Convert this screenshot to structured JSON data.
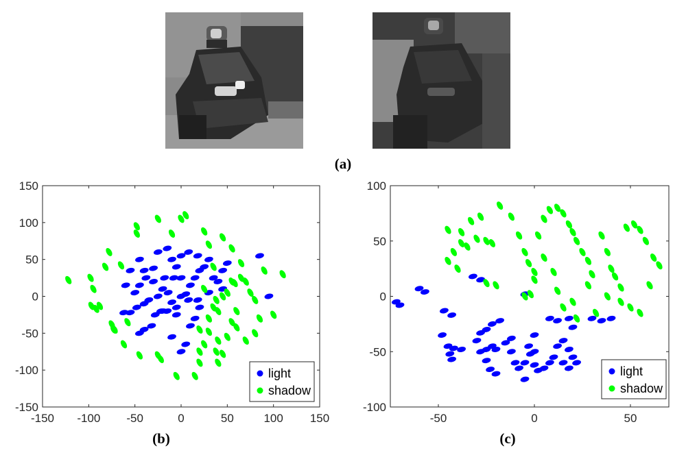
{
  "figure": {
    "captions": {
      "a": "(a)",
      "b": "(b)",
      "c": "(c)"
    },
    "photos": [
      {
        "name": "vehicle-under-light-photo"
      },
      {
        "name": "vehicle-in-shadow-photo"
      }
    ]
  },
  "chart_data": [
    {
      "type": "scatter",
      "title": "",
      "xlabel": "",
      "ylabel": "",
      "xlim": [
        -150,
        150
      ],
      "ylim": [
        -150,
        150
      ],
      "xticks": [
        -150,
        -100,
        -50,
        0,
        50,
        100,
        150
      ],
      "yticks": [
        -150,
        -100,
        -50,
        0,
        50,
        100,
        150
      ],
      "grid": false,
      "legend_position": "bottom-right",
      "series": [
        {
          "name": "light",
          "color": "#0000ff",
          "points": [
            [
              -62,
              -22
            ],
            [
              -55,
              -22
            ],
            [
              -48,
              -15
            ],
            [
              -40,
              -10
            ],
            [
              -35,
              -5
            ],
            [
              -25,
              0
            ],
            [
              -20,
              10
            ],
            [
              -14,
              5
            ],
            [
              -10,
              -8
            ],
            [
              -5,
              -15
            ],
            [
              0,
              0
            ],
            [
              5,
              3
            ],
            [
              8,
              -5
            ],
            [
              10,
              15
            ],
            [
              15,
              25
            ],
            [
              0,
              25
            ],
            [
              -8,
              25
            ],
            [
              -18,
              25
            ],
            [
              -30,
              20
            ],
            [
              -38,
              25
            ],
            [
              -45,
              15
            ],
            [
              -50,
              5
            ],
            [
              -60,
              15
            ],
            [
              -55,
              35
            ],
            [
              -45,
              50
            ],
            [
              -40,
              35
            ],
            [
              -30,
              38
            ],
            [
              -25,
              60
            ],
            [
              -15,
              65
            ],
            [
              -10,
              50
            ],
            [
              -5,
              40
            ],
            [
              0,
              55
            ],
            [
              8,
              60
            ],
            [
              18,
              55
            ],
            [
              20,
              35
            ],
            [
              25,
              40
            ],
            [
              30,
              50
            ],
            [
              35,
              25
            ],
            [
              40,
              20
            ],
            [
              45,
              10
            ],
            [
              30,
              5
            ],
            [
              18,
              -5
            ],
            [
              20,
              -15
            ],
            [
              15,
              -30
            ],
            [
              10,
              -40
            ],
            [
              -5,
              -25
            ],
            [
              -15,
              -20
            ],
            [
              -22,
              -20
            ],
            [
              -28,
              -25
            ],
            [
              -32,
              -40
            ],
            [
              -40,
              -45
            ],
            [
              -45,
              -50
            ],
            [
              -10,
              -55
            ],
            [
              0,
              -75
            ],
            [
              5,
              -65
            ],
            [
              45,
              35
            ],
            [
              50,
              45
            ],
            [
              85,
              55
            ],
            [
              95,
              0
            ],
            [
              -20,
              -20
            ]
          ]
        },
        {
          "name": "shadow",
          "color": "#00ff00",
          "points": [
            [
              -122,
              22
            ],
            [
              -98,
              25
            ],
            [
              -95,
              10
            ],
            [
              -97,
              -13
            ],
            [
              -92,
              -17
            ],
            [
              -88,
              -13
            ],
            [
              -82,
              40
            ],
            [
              -78,
              60
            ],
            [
              -75,
              -38
            ],
            [
              -73,
              -45
            ],
            [
              -62,
              -65
            ],
            [
              -65,
              42
            ],
            [
              -48,
              85
            ],
            [
              -48,
              95
            ],
            [
              -45,
              -80
            ],
            [
              -25,
              105
            ],
            [
              -25,
              -80
            ],
            [
              -22,
              -85
            ],
            [
              -10,
              85
            ],
            [
              -5,
              -108
            ],
            [
              0,
              105
            ],
            [
              5,
              110
            ],
            [
              15,
              -108
            ],
            [
              20,
              -90
            ],
            [
              25,
              88
            ],
            [
              20,
              -75
            ],
            [
              25,
              -65
            ],
            [
              30,
              -48
            ],
            [
              30,
              -30
            ],
            [
              35,
              -15
            ],
            [
              40,
              -20
            ],
            [
              38,
              -5
            ],
            [
              45,
              0
            ],
            [
              50,
              5
            ],
            [
              55,
              20
            ],
            [
              58,
              18
            ],
            [
              60,
              -20
            ],
            [
              60,
              -42
            ],
            [
              55,
              -35
            ],
            [
              50,
              -55
            ],
            [
              40,
              -60
            ],
            [
              38,
              -75
            ],
            [
              40,
              -90
            ],
            [
              45,
              -78
            ],
            [
              35,
              40
            ],
            [
              30,
              70
            ],
            [
              45,
              80
            ],
            [
              55,
              65
            ],
            [
              65,
              45
            ],
            [
              65,
              25
            ],
            [
              70,
              20
            ],
            [
              75,
              5
            ],
            [
              80,
              -5
            ],
            [
              85,
              -30
            ],
            [
              80,
              -50
            ],
            [
              70,
              -60
            ],
            [
              90,
              35
            ],
            [
              100,
              -25
            ],
            [
              110,
              30
            ],
            [
              25,
              10
            ],
            [
              20,
              -45
            ],
            [
              -58,
              -35
            ],
            [
              -72,
              -45
            ]
          ]
        }
      ]
    },
    {
      "type": "scatter",
      "title": "",
      "xlabel": "",
      "ylabel": "",
      "xlim": [
        -75,
        70
      ],
      "ylim": [
        -100,
        100
      ],
      "xticks": [
        -50,
        0,
        50
      ],
      "yticks": [
        -100,
        -50,
        0,
        50,
        100
      ],
      "grid": false,
      "legend_position": "bottom-right",
      "series": [
        {
          "name": "light",
          "color": "#0000ff",
          "points": [
            [
              -72,
              -5
            ],
            [
              -70,
              -8
            ],
            [
              -60,
              7
            ],
            [
              -57,
              4
            ],
            [
              -47,
              -13
            ],
            [
              -43,
              -17
            ],
            [
              -48,
              -35
            ],
            [
              -45,
              -45
            ],
            [
              -42,
              -47
            ],
            [
              -44,
              -52
            ],
            [
              -43,
              -57
            ],
            [
              -38,
              -48
            ],
            [
              -32,
              18
            ],
            [
              -28,
              15
            ],
            [
              -30,
              -40
            ],
            [
              -28,
              -33
            ],
            [
              -25,
              -30
            ],
            [
              -22,
              -25
            ],
            [
              -18,
              -22
            ],
            [
              -28,
              -50
            ],
            [
              -25,
              -48
            ],
            [
              -22,
              -45
            ],
            [
              -20,
              -48
            ],
            [
              -25,
              -58
            ],
            [
              -23,
              -66
            ],
            [
              -20,
              -70
            ],
            [
              -15,
              -42
            ],
            [
              -12,
              -38
            ],
            [
              -12,
              -50
            ],
            [
              -10,
              -60
            ],
            [
              -8,
              -65
            ],
            [
              -5,
              -60
            ],
            [
              -5,
              -75
            ],
            [
              -3,
              -45
            ],
            [
              -2,
              -52
            ],
            [
              0,
              -50
            ],
            [
              0,
              -62
            ],
            [
              2,
              -67
            ],
            [
              5,
              -65
            ],
            [
              8,
              -60
            ],
            [
              10,
              -55
            ],
            [
              12,
              -45
            ],
            [
              15,
              -40
            ],
            [
              18,
              -48
            ],
            [
              20,
              -55
            ],
            [
              15,
              -60
            ],
            [
              18,
              -65
            ],
            [
              22,
              -60
            ],
            [
              8,
              -20
            ],
            [
              12,
              -22
            ],
            [
              18,
              -20
            ],
            [
              20,
              -28
            ],
            [
              30,
              -20
            ],
            [
              35,
              -22
            ],
            [
              40,
              -20
            ],
            [
              0,
              -35
            ],
            [
              -5,
              2
            ]
          ]
        },
        {
          "name": "shadow",
          "color": "#00ff00",
          "points": [
            [
              -38,
              48
            ],
            [
              -35,
              45
            ],
            [
              -30,
              52
            ],
            [
              -25,
              50
            ],
            [
              -22,
              48
            ],
            [
              -33,
              68
            ],
            [
              -28,
              72
            ],
            [
              -18,
              82
            ],
            [
              -12,
              72
            ],
            [
              -8,
              55
            ],
            [
              -5,
              40
            ],
            [
              -3,
              30
            ],
            [
              0,
              22
            ],
            [
              -2,
              2
            ],
            [
              -5,
              0
            ],
            [
              2,
              55
            ],
            [
              5,
              70
            ],
            [
              8,
              78
            ],
            [
              12,
              80
            ],
            [
              15,
              75
            ],
            [
              18,
              65
            ],
            [
              20,
              58
            ],
            [
              22,
              50
            ],
            [
              25,
              40
            ],
            [
              28,
              32
            ],
            [
              30,
              20
            ],
            [
              28,
              10
            ],
            [
              20,
              -5
            ],
            [
              22,
              -20
            ],
            [
              15,
              -10
            ],
            [
              12,
              5
            ],
            [
              10,
              22
            ],
            [
              5,
              35
            ],
            [
              0,
              15
            ],
            [
              -20,
              10
            ],
            [
              -25,
              12
            ],
            [
              -38,
              58
            ],
            [
              -45,
              60
            ],
            [
              -42,
              40
            ],
            [
              -45,
              32
            ],
            [
              -40,
              25
            ],
            [
              35,
              55
            ],
            [
              38,
              40
            ],
            [
              40,
              25
            ],
            [
              42,
              18
            ],
            [
              48,
              62
            ],
            [
              52,
              65
            ],
            [
              55,
              60
            ],
            [
              58,
              50
            ],
            [
              62,
              35
            ],
            [
              65,
              28
            ],
            [
              60,
              10
            ],
            [
              55,
              -15
            ],
            [
              50,
              -10
            ],
            [
              45,
              -5
            ],
            [
              32,
              -15
            ],
            [
              38,
              0
            ],
            [
              45,
              8
            ]
          ]
        }
      ]
    }
  ]
}
